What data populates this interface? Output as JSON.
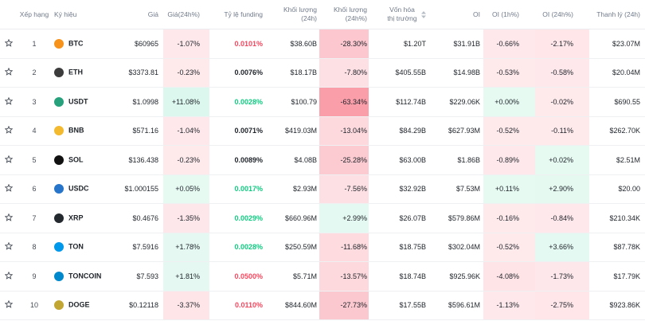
{
  "table": {
    "headers": [
      "Xếp hạng",
      "Ký hiệu",
      "Giá",
      "Giá(24h%)",
      "Tỷ lệ funding",
      "Khối lượng (24h)",
      "Khối lượng (24h%)",
      "Vốn hóa thị trường",
      "OI",
      "OI (1h%)",
      "OI (24h%)",
      "Thanh lý (24h)"
    ],
    "rows": [
      [
        "1",
        "BTC",
        "$60965",
        "-1.07%",
        "0.0101%",
        "$38.60B",
        "-28.30%",
        "$1.20T",
        "$31.91B",
        "-0.66%",
        "-2.17%",
        "$23.07M"
      ],
      [
        "2",
        "ETH",
        "$3373.81",
        "-0.23%",
        "0.0076%",
        "$18.17B",
        "-7.80%",
        "$405.55B",
        "$14.98B",
        "-0.53%",
        "-0.58%",
        "$20.04M"
      ],
      [
        "3",
        "USDT",
        "$1.0998",
        "+11.08%",
        "0.0028%",
        "$100.79",
        "-63.34%",
        "$112.74B",
        "$229.06K",
        "+0.00%",
        "-0.02%",
        "$690.55"
      ],
      [
        "4",
        "BNB",
        "$571.16",
        "-1.04%",
        "0.0071%",
        "$419.03M",
        "-13.04%",
        "$84.29B",
        "$627.93M",
        "-0.52%",
        "-0.11%",
        "$262.70K"
      ],
      [
        "5",
        "SOL",
        "$136.438",
        "-0.23%",
        "0.0089%",
        "$4.08B",
        "-25.28%",
        "$63.00B",
        "$1.86B",
        "-0.89%",
        "+0.02%",
        "$2.51M"
      ],
      [
        "6",
        "USDC",
        "$1.000155",
        "+0.05%",
        "0.0017%",
        "$2.93M",
        "-7.56%",
        "$32.92B",
        "$7.53M",
        "+0.11%",
        "+2.90%",
        "$20.00"
      ],
      [
        "7",
        "XRP",
        "$0.4676",
        "-1.35%",
        "0.0029%",
        "$660.96M",
        "+2.99%",
        "$26.07B",
        "$579.86M",
        "-0.16%",
        "-0.84%",
        "$210.34K"
      ],
      [
        "8",
        "TON",
        "$7.5916",
        "+1.78%",
        "0.0028%",
        "$250.59M",
        "-11.68%",
        "$18.75B",
        "$302.04M",
        "-0.52%",
        "+3.66%",
        "$87.78K"
      ],
      [
        "9",
        "TONCOIN",
        "$7.593",
        "+1.81%",
        "0.0500%",
        "$5.71M",
        "-13.57%",
        "$18.74B",
        "$925.96K",
        "-4.08%",
        "-1.73%",
        "$17.79K"
      ],
      [
        "10",
        "DOGE",
        "$0.12118",
        "-3.37%",
        "0.0110%",
        "$844.60M",
        "-27.73%",
        "$17.55B",
        "$596.61M",
        "-1.13%",
        "-2.75%",
        "$923.86K"
      ]
    ]
  }
}
